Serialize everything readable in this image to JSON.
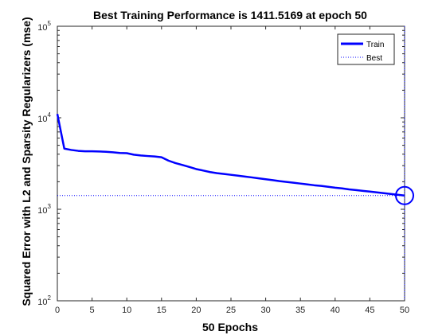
{
  "chart_data": {
    "type": "line",
    "title": "Best Training Performance is 1411.5169 at epoch 50",
    "xlabel": "50 Epochs",
    "ylabel": "Squared Error with L2 and Sparsity Regularizers  (mse)",
    "xlim": [
      0,
      50
    ],
    "ylim": [
      100,
      100000
    ],
    "yscale": "log",
    "x_ticks": [
      "0",
      "5",
      "10",
      "15",
      "20",
      "25",
      "30",
      "35",
      "40",
      "45",
      "50"
    ],
    "y_ticks": [
      {
        "base": "10",
        "exp": "2"
      },
      {
        "base": "10",
        "exp": "3"
      },
      {
        "base": "10",
        "exp": "4"
      },
      {
        "base": "10",
        "exp": "5"
      }
    ],
    "grid": false,
    "legend_position": "top-right",
    "series": [
      {
        "name": "Train",
        "color": "#0000ff",
        "style": "solid",
        "x": [
          0,
          1,
          2,
          3,
          4,
          5,
          6,
          7,
          8,
          9,
          10,
          11,
          12,
          13,
          14,
          15,
          16,
          17,
          18,
          19,
          20,
          21,
          22,
          23,
          24,
          25,
          26,
          27,
          28,
          29,
          30,
          31,
          32,
          33,
          34,
          35,
          36,
          37,
          38,
          39,
          40,
          41,
          42,
          43,
          44,
          45,
          46,
          47,
          48,
          49,
          50
        ],
        "y": [
          11000,
          4600,
          4450,
          4350,
          4300,
          4300,
          4280,
          4250,
          4200,
          4120,
          4100,
          3950,
          3870,
          3820,
          3780,
          3700,
          3400,
          3200,
          3050,
          2900,
          2750,
          2650,
          2550,
          2480,
          2430,
          2380,
          2330,
          2280,
          2230,
          2180,
          2130,
          2080,
          2030,
          1990,
          1950,
          1910,
          1870,
          1830,
          1800,
          1760,
          1720,
          1690,
          1650,
          1620,
          1590,
          1560,
          1530,
          1500,
          1470,
          1440,
          1411.5169
        ]
      },
      {
        "name": "Best",
        "color": "#0000ff",
        "style": "dotted",
        "x": [
          0,
          50
        ],
        "y": [
          1411.5169,
          1411.5169
        ]
      }
    ],
    "best_marker": {
      "x": 50,
      "y": 1411.5169,
      "color": "#0000ff"
    },
    "best_vline_x": 50
  }
}
